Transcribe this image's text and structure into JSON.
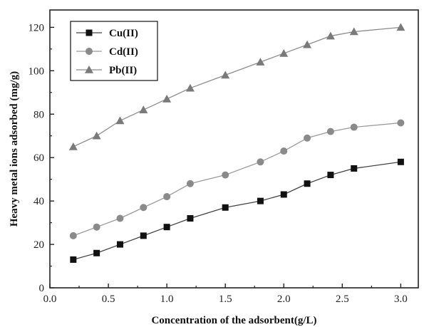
{
  "chart_data": {
    "type": "line",
    "title": "",
    "xlabel": "Concentration of the adsorbent(g/L)",
    "ylabel": "Heavy metal ions  adsorbed (mg/g)",
    "xlim": [
      0,
      3.15
    ],
    "ylim": [
      0,
      128
    ],
    "xticks": [
      "0.0",
      "0.5",
      "1.0",
      "1.5",
      "2.0",
      "2.5",
      "3.0"
    ],
    "yticks": [
      "0",
      "20",
      "40",
      "60",
      "80",
      "100",
      "120"
    ],
    "x": [
      0.2,
      0.4,
      0.6,
      0.8,
      1.0,
      1.2,
      1.5,
      1.8,
      2.0,
      2.2,
      2.4,
      2.6,
      3.0
    ],
    "legend_position": "top-left",
    "grid": false,
    "series": [
      {
        "name": "Cu(II)",
        "marker": "square",
        "color": "#111111",
        "line_color": "#444444",
        "values": [
          13,
          16,
          20,
          24,
          28,
          32,
          37,
          40,
          43,
          48,
          52,
          55,
          58
        ]
      },
      {
        "name": "Cd(II)",
        "marker": "circle",
        "color": "#8a8a8a",
        "line_color": "#9a9a9a",
        "values": [
          24,
          28,
          32,
          37,
          42,
          48,
          52,
          58,
          63,
          69,
          72,
          74,
          76
        ]
      },
      {
        "name": "Pb(II)",
        "marker": "triangle",
        "color": "#7a7a7a",
        "line_color": "#8c8c8c",
        "values": [
          65,
          70,
          77,
          82,
          87,
          92,
          98,
          104,
          108,
          112,
          116,
          118,
          120
        ]
      }
    ]
  }
}
